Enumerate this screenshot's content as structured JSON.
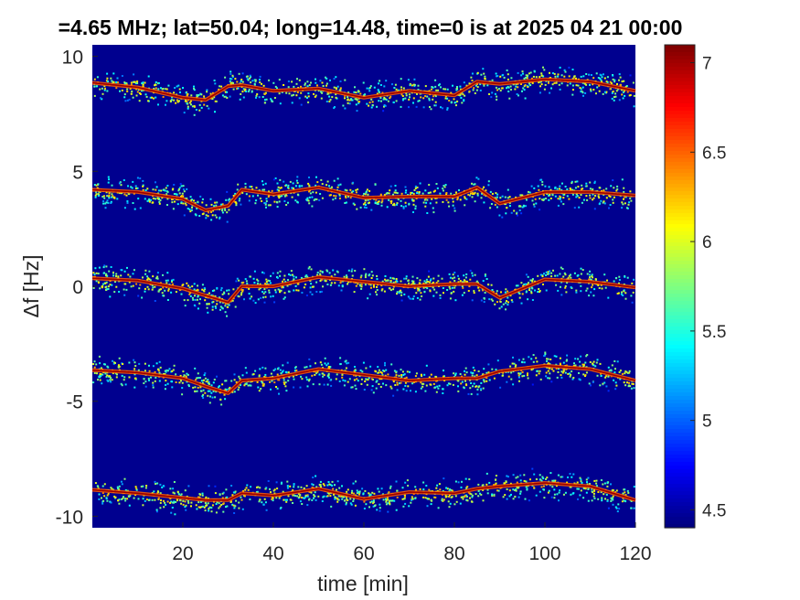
{
  "chart_data": {
    "type": "heatmap",
    "title": "=4.65 MHz;  lat=50.04; long=14.48, time=0 is at 2025 04 21 00:00",
    "xlabel": "time [min]",
    "ylabel": "Δf [Hz]",
    "xlim": [
      0,
      120
    ],
    "ylim": [
      -10.5,
      10.5
    ],
    "xticks": [
      20,
      40,
      60,
      80,
      100,
      120
    ],
    "xtick_labels": [
      "20",
      "40",
      "60",
      "80",
      "100",
      "120"
    ],
    "yticks": [
      10,
      5,
      0,
      -5,
      -10
    ],
    "ytick_labels": [
      "10",
      "5",
      "0",
      "-5",
      "-10"
    ],
    "colorbar": {
      "colormap": "jet",
      "clim": [
        4.4,
        7.1
      ],
      "ticks": [
        4.5,
        5,
        5.5,
        6,
        6.5,
        7
      ],
      "tick_labels": [
        "4.5",
        "5",
        "5.5",
        "6",
        "6.5",
        "7"
      ]
    },
    "background_color": "#00008f",
    "grid": false,
    "trace_time_min": [
      0,
      10,
      20,
      25,
      30,
      33,
      40,
      50,
      60,
      70,
      80,
      85,
      90,
      100,
      110,
      120
    ],
    "series": [
      {
        "offset_hz": [
          8.85,
          8.65,
          8.2,
          8.1,
          8.7,
          8.75,
          8.5,
          8.6,
          8.2,
          8.5,
          8.3,
          8.9,
          8.8,
          9.0,
          8.9,
          8.5
        ]
      },
      {
        "offset_hz": [
          4.2,
          4.1,
          3.8,
          3.3,
          3.5,
          4.2,
          4.0,
          4.3,
          3.85,
          3.9,
          3.9,
          4.3,
          3.6,
          4.1,
          4.1,
          3.95
        ]
      },
      {
        "offset_hz": [
          0.35,
          0.25,
          -0.1,
          -0.4,
          -0.7,
          0.0,
          0.0,
          0.4,
          0.2,
          0.0,
          0.1,
          0.1,
          -0.5,
          0.3,
          0.2,
          -0.05
        ]
      },
      {
        "offset_hz": [
          -3.65,
          -3.75,
          -4.0,
          -4.35,
          -4.65,
          -4.1,
          -4.0,
          -3.6,
          -3.85,
          -4.1,
          -4.0,
          -4.0,
          -3.7,
          -3.45,
          -3.6,
          -4.1
        ]
      },
      {
        "offset_hz": [
          -8.85,
          -9.0,
          -9.2,
          -9.3,
          -9.3,
          -9.0,
          -9.1,
          -8.8,
          -9.25,
          -8.95,
          -9.0,
          -8.8,
          -8.7,
          -8.55,
          -8.7,
          -9.3
        ]
      }
    ]
  }
}
